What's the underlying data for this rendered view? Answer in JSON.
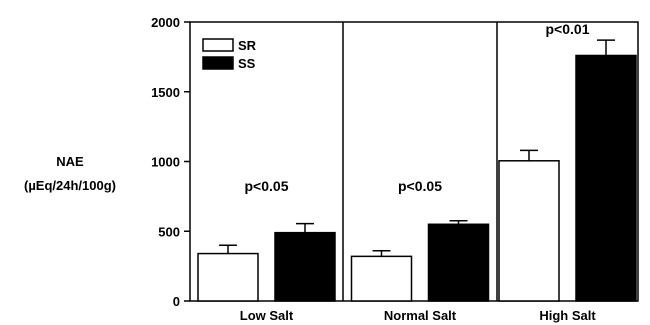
{
  "chart_data": {
    "type": "bar",
    "ylabel_lines": [
      "NAE",
      "(µEq/24h/100g)"
    ],
    "ylim": [
      0,
      2000
    ],
    "yticks": [
      0,
      500,
      1000,
      1500,
      2000
    ],
    "categories": [
      "Low Salt",
      "Normal Salt",
      "High Salt"
    ],
    "series": [
      {
        "name": "SR",
        "values": [
          340,
          320,
          1005
        ],
        "errors": [
          60,
          40,
          75
        ],
        "color": "#ffffff"
      },
      {
        "name": "SS",
        "values": [
          490,
          550,
          1760
        ],
        "errors": [
          65,
          25,
          110
        ],
        "color": "#000000"
      }
    ],
    "annotations": [
      "p<0.05",
      "p<0.05",
      "p<0.01"
    ],
    "legend_placement": "top-left",
    "grid": false
  }
}
